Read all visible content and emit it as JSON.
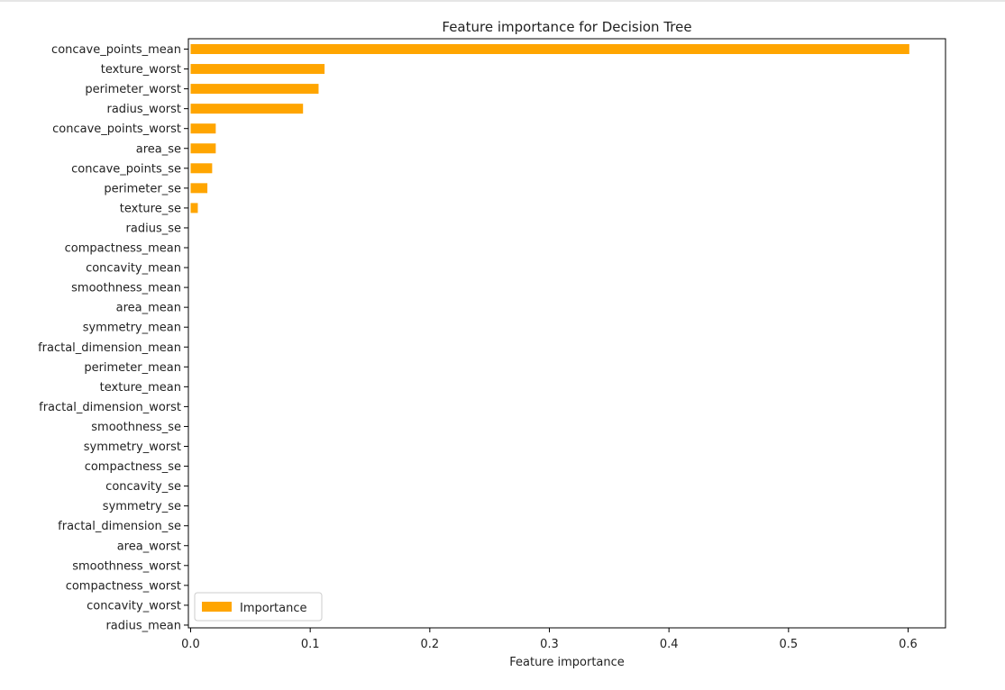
{
  "chart_data": {
    "type": "bar",
    "orientation": "horizontal",
    "title": "Feature importance for Decision Tree",
    "xlabel": "Feature importance",
    "ylabel": "",
    "xlim": [
      0,
      0.632
    ],
    "xticks": [
      0.0,
      0.1,
      0.2,
      0.3,
      0.4,
      0.5,
      0.6
    ],
    "xtick_labels": [
      "0.0",
      "0.1",
      "0.2",
      "0.3",
      "0.4",
      "0.5",
      "0.6"
    ],
    "grid": false,
    "bar_color": "#ffa500",
    "legend": {
      "placement": "lower-left",
      "entries": [
        "Importance"
      ]
    },
    "categories": [
      "concave_points_mean",
      "texture_worst",
      "perimeter_worst",
      "radius_worst",
      "concave_points_worst",
      "area_se",
      "concave_points_se",
      "perimeter_se",
      "texture_se",
      "radius_se",
      "compactness_mean",
      "concavity_mean",
      "smoothness_mean",
      "area_mean",
      "symmetry_mean",
      "fractal_dimension_mean",
      "perimeter_mean",
      "texture_mean",
      "fractal_dimension_worst",
      "smoothness_se",
      "symmetry_worst",
      "compactness_se",
      "concavity_se",
      "symmetry_se",
      "fractal_dimension_se",
      "area_worst",
      "smoothness_worst",
      "compactness_worst",
      "concavity_worst",
      "radius_mean"
    ],
    "series": [
      {
        "name": "Importance",
        "values": [
          0.601,
          0.112,
          0.107,
          0.094,
          0.021,
          0.021,
          0.018,
          0.014,
          0.006,
          0,
          0,
          0,
          0,
          0,
          0,
          0,
          0,
          0,
          0,
          0,
          0,
          0,
          0,
          0,
          0,
          0,
          0,
          0,
          0,
          0
        ]
      }
    ]
  }
}
